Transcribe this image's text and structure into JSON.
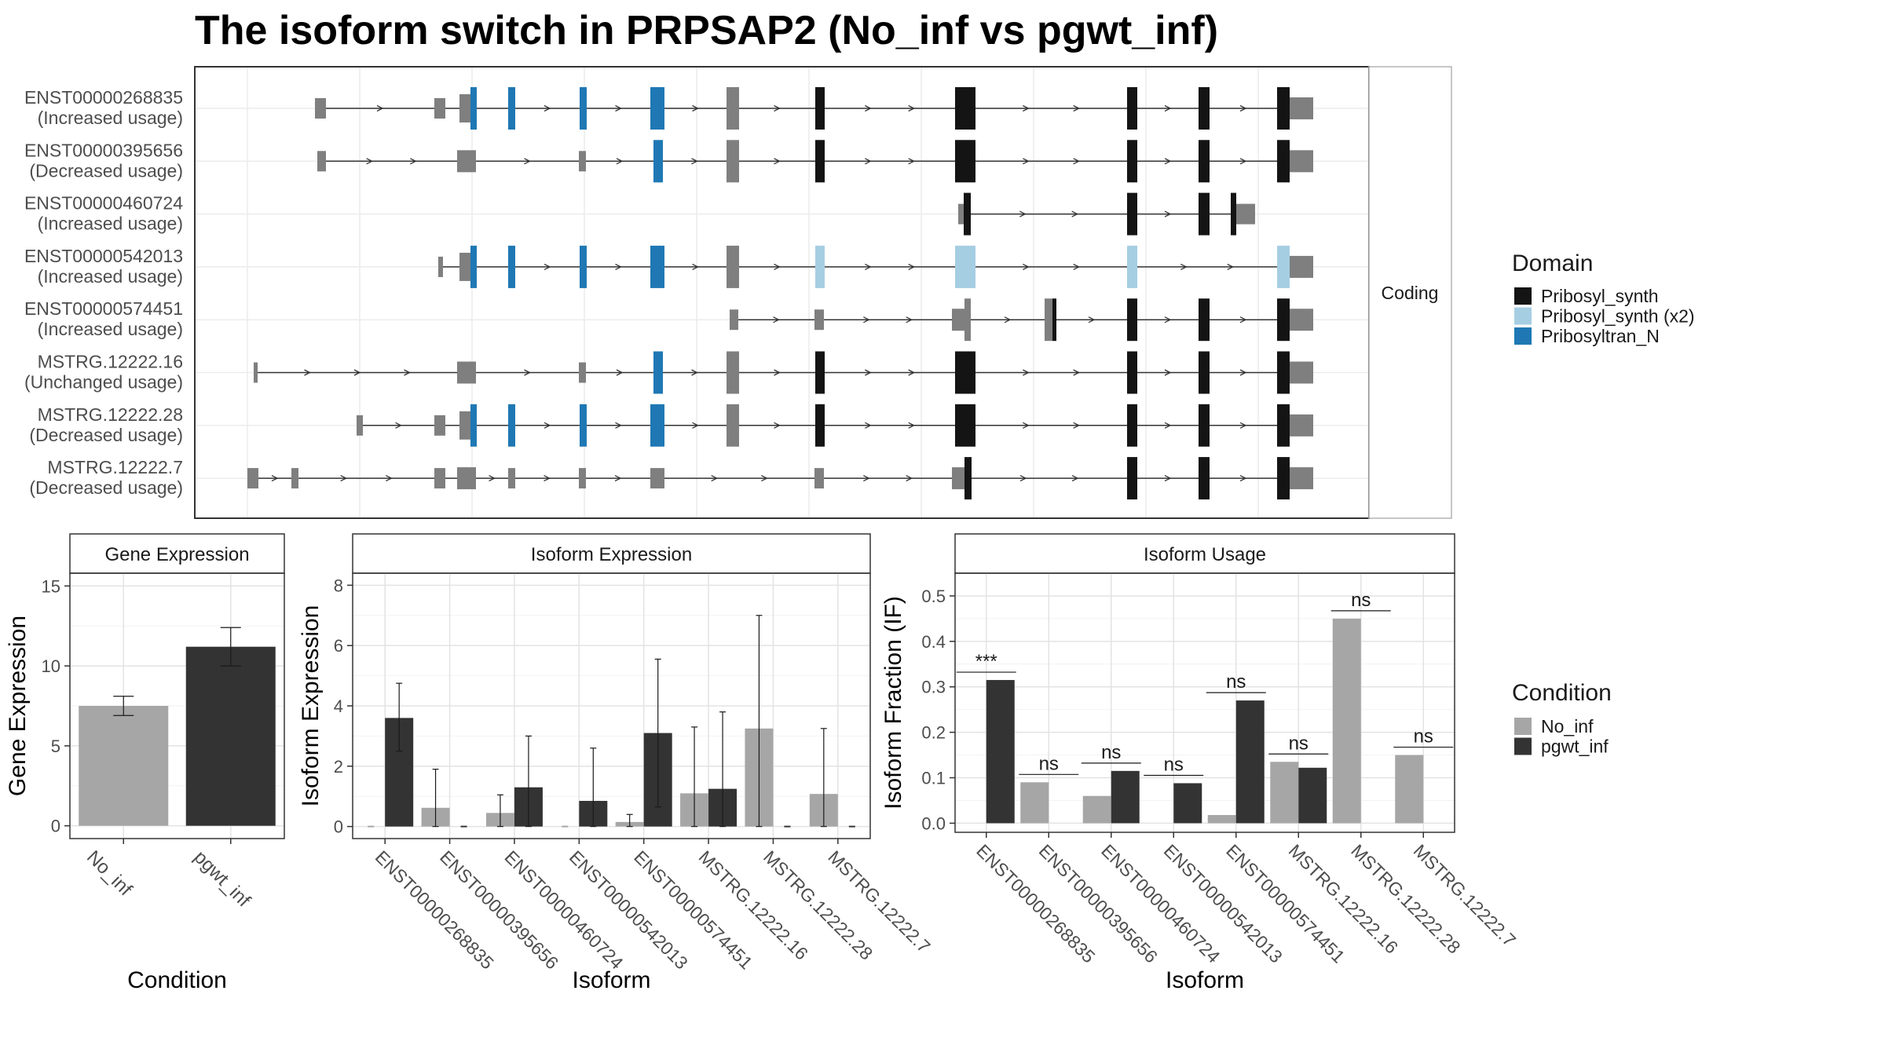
{
  "title": "The isoform switch in PRPSAP2 (No_inf vs pgwt_inf)",
  "colors": {
    "no_inf": "#a6a6a6",
    "pgwt_inf": "#333333",
    "Pribosyl_synth": "#141414",
    "Pribosyl_synth (x2)": "#a6cee3",
    "Pribosyltran_N": "#1f78b4",
    "noncoding_exon": "#7f7f7f"
  },
  "chart_data": [
    {
      "type": "gene-structure",
      "facet_label": "Coding",
      "transcripts": [
        {
          "id": "ENST00000268835",
          "usage": "(Increased usage)"
        },
        {
          "id": "ENST00000395656",
          "usage": "(Decreased usage)"
        },
        {
          "id": "ENST00000460724",
          "usage": "(Increased usage)"
        },
        {
          "id": "ENST00000542013",
          "usage": "(Increased usage)"
        },
        {
          "id": "ENST00000574451",
          "usage": "(Increased usage)"
        },
        {
          "id": "MSTRG.12222.16",
          "usage": "(Unchanged usage)"
        },
        {
          "id": "MSTRG.12222.28",
          "usage": "(Decreased usage)"
        },
        {
          "id": "MSTRG.12222.7",
          "usage": "(Decreased usage)"
        }
      ],
      "legend": {
        "title": "Domain",
        "entries": [
          "Pribosyl_synth",
          "Pribosyl_synth (x2)",
          "Pribosyltran_N"
        ]
      }
    },
    {
      "type": "bar",
      "title": "Gene Expression",
      "xlabel": "Condition",
      "ylabel": "Gene Expression",
      "categories": [
        "No_inf",
        "pgwt_inf"
      ],
      "values": [
        7.5,
        11.2
      ],
      "error": [
        [
          6.9,
          8.1
        ],
        [
          10.0,
          12.4
        ]
      ],
      "ylim": [
        -0.8,
        15.8
      ],
      "yticks": [
        0,
        5,
        10,
        15
      ]
    },
    {
      "type": "bar",
      "title": "Isoform Expression",
      "xlabel": "Isoform",
      "ylabel": "Isoform Expression",
      "categories": [
        "ENST00000268835",
        "ENST00000395656",
        "ENST00000460724",
        "ENST00000542013",
        "ENST00000574451",
        "MSTRG.12222.16",
        "MSTRG.12222.28",
        "MSTRG.12222.7"
      ],
      "series": [
        {
          "name": "No_inf",
          "values": [
            0,
            0.62,
            0.45,
            0,
            0.15,
            1.1,
            3.25,
            1.08
          ],
          "error": [
            null,
            [
              0,
              1.9
            ],
            [
              0,
              1.05
            ],
            null,
            [
              0,
              0.4
            ],
            [
              0,
              3.3
            ],
            [
              0,
              7.0
            ],
            [
              0,
              3.25
            ]
          ]
        },
        {
          "name": "pgwt_inf",
          "values": [
            3.6,
            0,
            1.3,
            0.85,
            3.1,
            1.25,
            0,
            0
          ],
          "error": [
            [
              2.5,
              4.75
            ],
            null,
            [
              0,
              3.0
            ],
            [
              0,
              2.6
            ],
            [
              0.65,
              5.55
            ],
            [
              0,
              3.8
            ],
            null,
            null
          ]
        }
      ],
      "ylim": [
        -0.4,
        8.4
      ],
      "yticks": [
        0,
        2,
        4,
        6,
        8
      ]
    },
    {
      "type": "bar",
      "title": "Isoform Usage",
      "xlabel": "Isoform",
      "ylabel": "Isoform Fraction (IF)",
      "categories": [
        "ENST00000268835",
        "ENST00000395656",
        "ENST00000460724",
        "ENST00000542013",
        "ENST00000574451",
        "MSTRG.12222.16",
        "MSTRG.12222.28",
        "MSTRG.12222.7"
      ],
      "series": [
        {
          "name": "No_inf",
          "values": [
            0,
            0.09,
            0.06,
            0,
            0.018,
            0.135,
            0.45,
            0.15
          ]
        },
        {
          "name": "pgwt_inf",
          "values": [
            0.315,
            0,
            0.115,
            0.088,
            0.27,
            0.122,
            0,
            0
          ]
        }
      ],
      "significance": [
        "***",
        "ns",
        "ns",
        "ns",
        "ns",
        "ns",
        "ns",
        "ns"
      ],
      "ylim": [
        -0.02,
        0.55
      ],
      "yticks": [
        0.0,
        0.1,
        0.2,
        0.3,
        0.4,
        0.5
      ],
      "ytick_labels": [
        "0.0",
        "0.1",
        "0.2",
        "0.3",
        "0.4",
        "0.5"
      ]
    }
  ],
  "condition_legend": {
    "title": "Condition",
    "entries": [
      "No_inf",
      "pgwt_inf"
    ]
  }
}
